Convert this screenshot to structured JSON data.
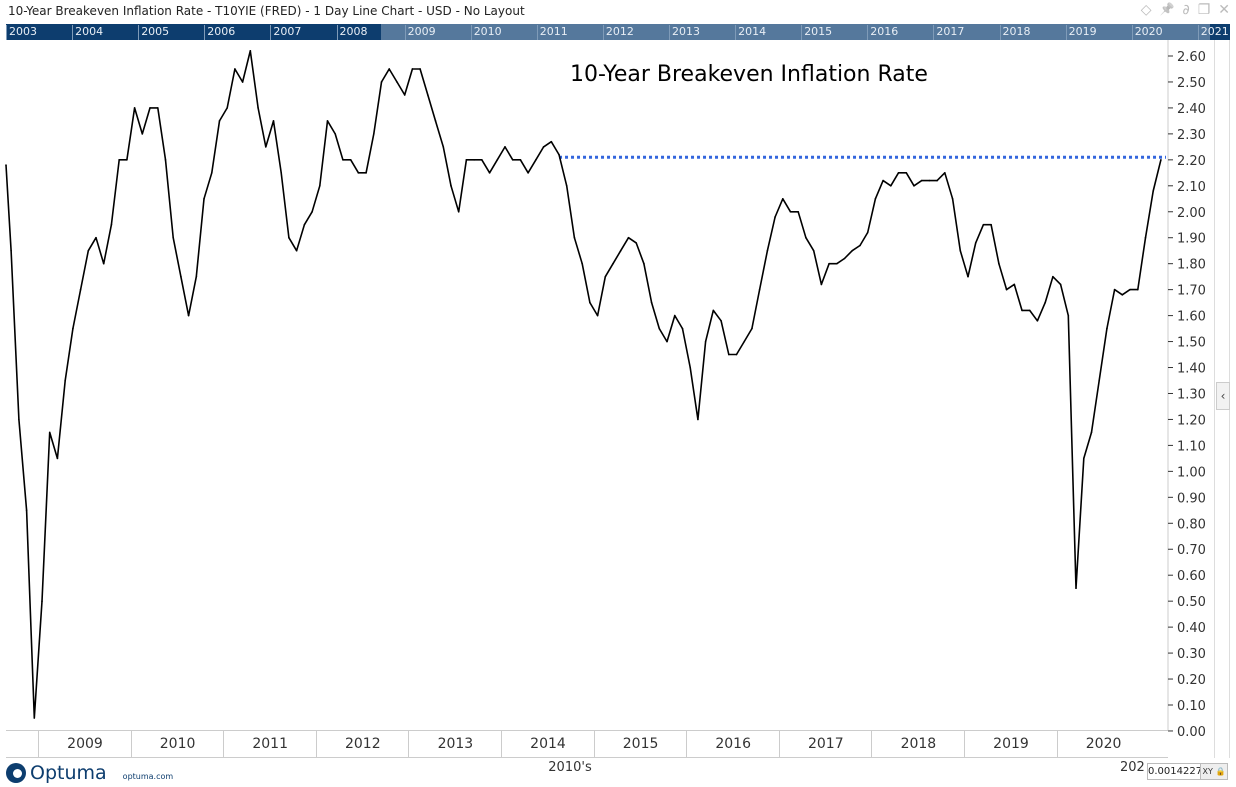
{
  "window": {
    "title": "10-Year Breakeven Inflation Rate - T10YIE (FRED) - 1 Day Line Chart - USD - No Layout",
    "controls": [
      {
        "icon": "diamond-icon",
        "glyph": "◇"
      },
      {
        "icon": "pin-icon",
        "glyph": "📌"
      },
      {
        "icon": "link-icon",
        "glyph": "∂"
      },
      {
        "icon": "restore-icon",
        "glyph": "❐"
      },
      {
        "icon": "close-icon",
        "glyph": "✕"
      }
    ]
  },
  "timeline": {
    "years": [
      "2003",
      "2004",
      "2005",
      "2006",
      "2007",
      "2008",
      "2009",
      "2010",
      "2011",
      "2012",
      "2013",
      "2014",
      "2015",
      "2016",
      "2017",
      "2018",
      "2019",
      "2020",
      "2021"
    ]
  },
  "footer": {
    "brand": "Optuma",
    "url": "optuma.com",
    "decade_label": "2010's",
    "decade_label_right": "202",
    "readout": "0.0014227",
    "xy_label": "XY",
    "collapse_glyph": "‹"
  },
  "colors": {
    "line": "#000000",
    "reference_line": "#3366dd",
    "timeline_dark": "#0d3d6e",
    "timeline_light": "#55789c"
  },
  "chart_data": {
    "type": "line",
    "title": "10-Year Breakeven Inflation Rate",
    "xlabel": "",
    "ylabel": "",
    "ylim": [
      0.0,
      2.6
    ],
    "y_ticks": [
      "0.00",
      "0.10",
      "0.20",
      "0.30",
      "0.40",
      "0.50",
      "0.60",
      "0.70",
      "0.80",
      "0.90",
      "1.00",
      "1.10",
      "1.20",
      "1.30",
      "1.40",
      "1.50",
      "1.60",
      "1.70",
      "1.80",
      "1.90",
      "2.00",
      "2.10",
      "2.20",
      "2.30",
      "2.40",
      "2.50",
      "2.60"
    ],
    "x_ticks": [
      "2009",
      "2010",
      "2011",
      "2012",
      "2013",
      "2014",
      "2015",
      "2016",
      "2017",
      "2018",
      "2019",
      "2020"
    ],
    "axis_side": "right",
    "grid": false,
    "series": [
      {
        "start_month": "2008-08",
        "frequency": "monthly",
        "values": [
          2.18,
          1.85,
          1.2,
          0.85,
          0.05,
          0.5,
          1.15,
          1.05,
          1.35,
          1.55,
          1.7,
          1.85,
          1.9,
          1.8,
          1.95,
          2.2,
          2.2,
          2.4,
          2.3,
          2.4,
          2.4,
          2.2,
          1.9,
          1.75,
          1.6,
          1.75,
          2.05,
          2.15,
          2.35,
          2.4,
          2.55,
          2.5,
          2.62,
          2.4,
          2.25,
          2.35,
          2.15,
          1.9,
          1.85,
          1.95,
          2.0,
          2.1,
          2.35,
          2.3,
          2.2,
          2.2,
          2.15,
          2.15,
          2.3,
          2.5,
          2.55,
          2.5,
          2.45,
          2.55,
          2.55,
          2.45,
          2.35,
          2.25,
          2.1,
          2.0,
          2.2,
          2.2,
          2.2,
          2.15,
          2.2,
          2.25,
          2.2,
          2.2,
          2.15,
          2.2,
          2.25,
          2.27,
          2.22,
          2.1,
          1.9,
          1.8,
          1.65,
          1.6,
          1.75,
          1.8,
          1.85,
          1.9,
          1.88,
          1.8,
          1.65,
          1.55,
          1.5,
          1.6,
          1.55,
          1.4,
          1.2,
          1.5,
          1.62,
          1.58,
          1.45,
          1.45,
          1.5,
          1.55,
          1.7,
          1.85,
          1.98,
          2.05,
          2.0,
          2.0,
          1.9,
          1.85,
          1.72,
          1.8,
          1.8,
          1.82,
          1.85,
          1.87,
          1.92,
          2.05,
          2.12,
          2.1,
          2.15,
          2.15,
          2.1,
          2.12,
          2.12,
          2.12,
          2.15,
          2.05,
          1.85,
          1.75,
          1.88,
          1.95,
          1.95,
          1.8,
          1.7,
          1.72,
          1.62,
          1.62,
          1.58,
          1.65,
          1.75,
          1.72,
          1.6,
          0.55,
          1.05,
          1.15,
          1.35,
          1.55,
          1.7,
          1.68,
          1.7,
          1.7,
          1.9,
          2.08,
          2.2
        ]
      }
    ],
    "reference_line": {
      "value": 2.21,
      "from": "2014-08",
      "style": "dotted"
    }
  }
}
